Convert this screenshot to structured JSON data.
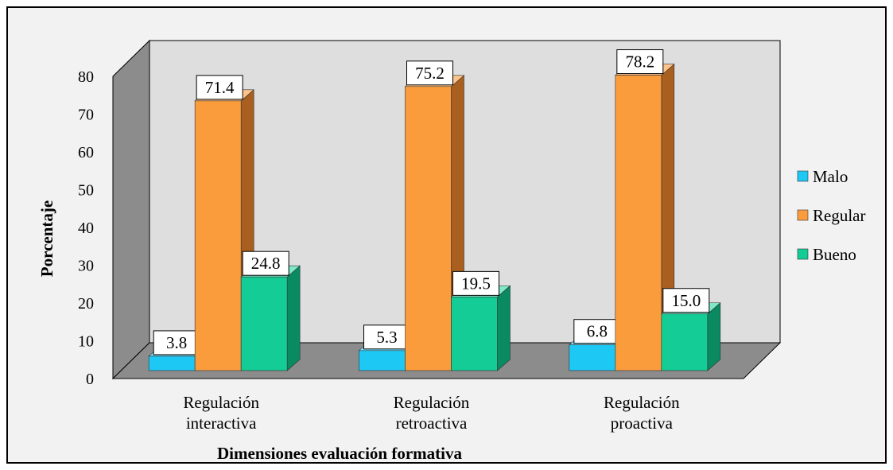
{
  "chart_data": {
    "type": "bar",
    "title": "",
    "xlabel": "Dimensiones evaluación  formativa",
    "ylabel": "Porcentaje",
    "ylim": [
      0,
      80
    ],
    "yticks": [
      0,
      10,
      20,
      30,
      40,
      50,
      60,
      70,
      80
    ],
    "categories": [
      [
        "Regulación",
        "interactiva"
      ],
      [
        "Regulación",
        "retroactiva"
      ],
      [
        "Regulación",
        "proactiva"
      ]
    ],
    "series": [
      {
        "name": "Malo",
        "values": [
          3.8,
          5.3,
          6.8
        ],
        "labels": [
          "3.8",
          "5.3",
          "6.8"
        ],
        "color": "#1ec8f5",
        "side_color": "#1490b0",
        "top_color": "#7fe2fb"
      },
      {
        "name": "Regular",
        "values": [
          71.4,
          75.2,
          78.2
        ],
        "labels": [
          "71.4",
          "75.2",
          "78.2"
        ],
        "color": "#fb9c3c",
        "side_color": "#a85f20",
        "top_color": "#fdc48a"
      },
      {
        "name": "Bueno",
        "values": [
          24.8,
          19.5,
          15.0
        ],
        "labels": [
          "24.8",
          "19.5",
          "15.0"
        ],
        "color": "#13cc96",
        "side_color": "#0a8a60",
        "top_color": "#7fe8c8"
      }
    ],
    "legend_position": "right",
    "style": "3d-clustered-column",
    "grid": false
  }
}
